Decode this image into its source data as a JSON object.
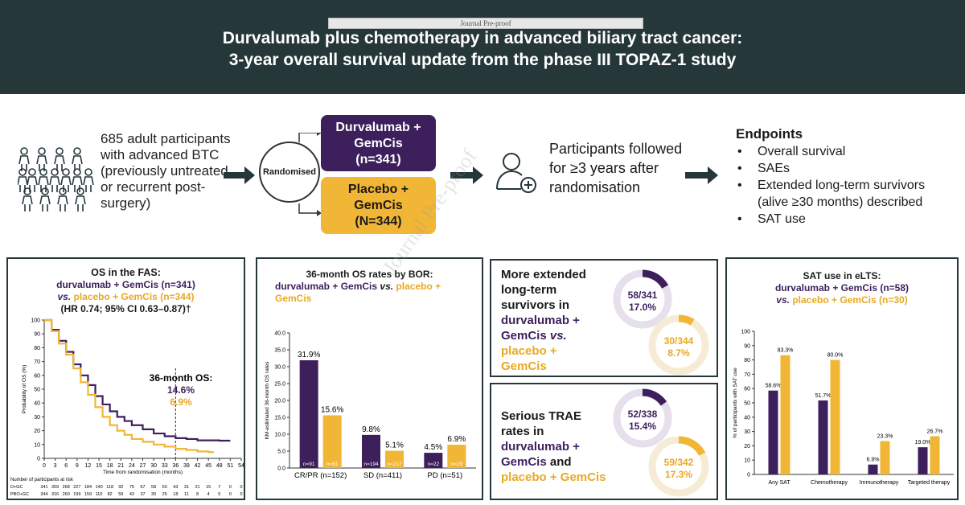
{
  "header": {
    "journal_watermark": "Journal Pre-proof",
    "title_line1": "Durvalumab plus chemotherapy in advanced biliary tract cancer:",
    "title_line2": "3-year overall survival update from the phase III TOPAZ-1 study"
  },
  "design": {
    "participants_text": "685 adult participants with advanced BTC (previously untreated or recurrent post-surgery)",
    "randomised": "Randomised",
    "arm_durva": [
      "Durvalumab +",
      "GemCis",
      "(n=341)"
    ],
    "arm_placebo": [
      "Placebo +",
      "GemCis",
      "(N=344)"
    ],
    "followed_text": "Participants followed for ≥3 years after randomisation",
    "endpoints_title": "Endpoints",
    "endpoints": [
      "Overall survival",
      "SAEs",
      "Extended long-term survivors",
      "SAT use"
    ],
    "endpoints_sub": "(alive ≥30 months) described",
    "diagonal_watermark": "Journal Pre-proof"
  },
  "colors": {
    "header": "#26373a",
    "durva": "#3d1f5c",
    "placebo": "#f2b636"
  },
  "os_panel": {
    "title": "OS in the FAS:",
    "line_durva": "durvalumab + GemCis (n=341)",
    "line_placebo_vs": "vs.",
    "line_placebo": "placebo + GemCis (n=344)",
    "hr": "(HR 0.74; 95% CI 0.63–0.87)†",
    "os36_label": "36-month OS:",
    "os36_durva": "14.6%",
    "os36_placebo": "6.9%",
    "ylabel": "Probability of OS (%)",
    "xlabel": "Time from randomisation (months)",
    "at_risk_title": "Number of participants at risk",
    "at_risk_rows": [
      {
        "label": "D+GC",
        "values": [
          "341",
          "309",
          "268",
          "227",
          "184",
          "140",
          "118",
          "92",
          "75",
          "67",
          "58",
          "50",
          "43",
          "31",
          "21",
          "15",
          "7",
          "0",
          "0"
        ]
      },
      {
        "label": "PBO+GC",
        "values": [
          "344",
          "316",
          "260",
          "199",
          "159",
          "110",
          "82",
          "59",
          "43",
          "37",
          "30",
          "25",
          "18",
          "11",
          "8",
          "4",
          "0",
          "0",
          "0"
        ]
      }
    ]
  },
  "chart_data": [
    {
      "type": "line",
      "title": "OS in the FAS",
      "xlabel": "Time from randomisation (months)",
      "ylabel": "Probability of OS (%)",
      "xlim": [
        0,
        54
      ],
      "ylim": [
        0,
        100
      ],
      "xticks": [
        0,
        3,
        6,
        9,
        12,
        15,
        18,
        21,
        24,
        27,
        30,
        33,
        36,
        39,
        42,
        45,
        48,
        51,
        54
      ],
      "yticks": [
        0,
        10,
        20,
        30,
        40,
        50,
        60,
        70,
        80,
        90,
        100
      ],
      "series": [
        {
          "name": "durvalumab + GemCis",
          "x": [
            0,
            2,
            4,
            6,
            8,
            10,
            12,
            14,
            16,
            18,
            20,
            22,
            24,
            27,
            30,
            33,
            36,
            39,
            42,
            45,
            48,
            51
          ],
          "y": [
            100,
            93,
            85,
            77,
            68,
            60,
            53,
            45,
            39,
            34,
            30,
            27,
            24,
            21,
            18,
            16,
            14.6,
            14,
            13,
            13,
            12.8,
            12.8
          ]
        },
        {
          "name": "placebo + GemCis",
          "x": [
            0,
            2,
            4,
            6,
            8,
            10,
            12,
            14,
            16,
            18,
            20,
            22,
            24,
            27,
            30,
            33,
            36,
            39,
            42,
            45,
            46.5
          ],
          "y": [
            100,
            92,
            83,
            75,
            65,
            55,
            46,
            37,
            30,
            24,
            20,
            17,
            14,
            12,
            10,
            8.5,
            6.9,
            6,
            5,
            4.5,
            4.5
          ]
        }
      ]
    },
    {
      "type": "bar",
      "title": "36-month OS rates by BOR:",
      "ylabel": "KM-estimated 36-month OS rates",
      "ylim": [
        0,
        40
      ],
      "yticks": [
        "0.0",
        "5.0",
        "10.0",
        "15.0",
        "20.0",
        "25.0",
        "30.0",
        "35.0",
        "40.0"
      ],
      "categories": [
        "CR/PR (n=152)",
        "SD (n=411)",
        "PD (n=51)"
      ],
      "series": [
        {
          "name": "durvalumab + GemCis",
          "values": [
            31.9,
            9.8,
            4.5
          ],
          "labels": [
            "31.9%",
            "9.8%",
            "4.5%"
          ],
          "n": [
            "n=91",
            "n=194",
            "n=22"
          ]
        },
        {
          "name": "placebo + GemCis",
          "values": [
            15.6,
            5.1,
            6.9
          ],
          "labels": [
            "15.6%",
            "5.1%",
            "6.9%"
          ],
          "n": [
            "n=61",
            "n=217",
            "n=29"
          ]
        }
      ]
    },
    {
      "type": "bar",
      "title": "SAT use in eLTS:",
      "ylabel": "% of participants with SAT use",
      "ylim": [
        0,
        100
      ],
      "yticks": [
        "0",
        "10",
        "20",
        "30",
        "40",
        "50",
        "60",
        "70",
        "80",
        "90",
        "100"
      ],
      "categories": [
        "Any SAT",
        "Chemotherapy",
        "Immunotherapy",
        "Targeted therapy"
      ],
      "series": [
        {
          "name": "durvalumab + GemCis (n=58)",
          "values": [
            58.6,
            51.7,
            6.9,
            19.0
          ],
          "labels": [
            "58.6%",
            "51.7%",
            "6.9%",
            "19.0%"
          ]
        },
        {
          "name": "placebo + GemCis (n=30)",
          "values": [
            83.3,
            80.0,
            23.3,
            26.7
          ],
          "labels": [
            "83.3%",
            "80.0%",
            "23.3%",
            "26.7%"
          ]
        }
      ]
    }
  ],
  "bor_panel": {
    "title": "36-month OS rates by BOR:",
    "line_durva": "durvalumab + GemCis",
    "vs": "vs.",
    "line_placebo": "placebo +",
    "line_placebo2": "GemCis"
  },
  "elts_panel": {
    "text_l1": "More extended",
    "text_l2": "long-term",
    "text_l3": "survivors in",
    "text_l4": "durvalumab +",
    "text_l5": "GemCis",
    "text_vs": "vs.",
    "text_l6": "placebo +",
    "text_l7": "GemCis",
    "durva_frac": "58/341",
    "durva_pct": "17.0%",
    "durva_value": 17.0,
    "placebo_frac": "30/344",
    "placebo_pct": "8.7%",
    "placebo_value": 8.7
  },
  "trae_panel": {
    "text_l1": "Serious TRAE",
    "text_l2": "rates in",
    "text_l3": "durvalumab +",
    "text_l4": "GemCis",
    "text_and": "and",
    "text_l5": "placebo + GemCis",
    "durva_frac": "52/338",
    "durva_pct": "15.4%",
    "durva_value": 15.4,
    "placebo_frac": "59/342",
    "placebo_pct": "17.3%",
    "placebo_value": 17.3
  },
  "sat_panel": {
    "title": "SAT use in eLTS:",
    "line_durva": "durvalumab + GemCis (n=58)",
    "vs": "vs.",
    "line_placebo": "placebo + GemCis (n=30)"
  }
}
